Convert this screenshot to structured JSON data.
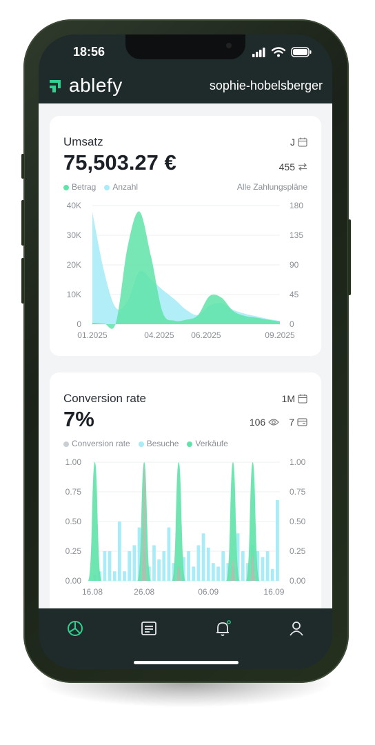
{
  "status_bar": {
    "time": "18:56"
  },
  "header": {
    "logo_text": "ablefy",
    "username": "sophie-hobelsberger"
  },
  "revenue_card": {
    "title": "Umsatz",
    "amount": "75,503.27 €",
    "period": "J",
    "count": "455",
    "legend": [
      "Betrag",
      "Anzahl"
    ],
    "filter": "Alle Zahlungspläne",
    "colors": {
      "betrag": "#5fe3a8",
      "anzahl": "#a8ecf7"
    }
  },
  "conversion_card": {
    "title": "Conversion rate",
    "value": "7%",
    "period": "1M",
    "visits": "106",
    "sales": "7",
    "legend": [
      "Conversion rate",
      "Besuche",
      "Verkäufe"
    ],
    "colors": {
      "conversion": "#c9ced3",
      "besuche": "#a8ecf7",
      "verkaeufe": "#5fe3a8"
    }
  },
  "chart_data": [
    {
      "type": "area",
      "title": "Umsatz",
      "x_ticks": [
        "01.2025",
        "04.2025",
        "06.2025",
        "09.2025"
      ],
      "y_left_ticks": [
        "0",
        "10K",
        "20K",
        "30K",
        "40K"
      ],
      "y_right_ticks": [
        "0",
        "45",
        "90",
        "135",
        "180"
      ],
      "ylim_left": [
        0,
        40000
      ],
      "ylim_right": [
        0,
        180
      ],
      "x": [
        0,
        0.5,
        1,
        1.5,
        2,
        2.5,
        3,
        3.5,
        4,
        4.5,
        5,
        5.5,
        6,
        6.5,
        7,
        7.5,
        8
      ],
      "series": [
        {
          "name": "Betrag",
          "axis": "left",
          "values": [
            500,
            200,
            400,
            26000,
            38000,
            23000,
            4000,
            1200,
            1500,
            3000,
            9500,
            9000,
            4500,
            2800,
            2200,
            1500,
            900
          ]
        },
        {
          "name": "Anzahl",
          "axis": "right",
          "values": [
            170,
            80,
            25,
            35,
            80,
            68,
            52,
            38,
            22,
            14,
            28,
            32,
            22,
            16,
            12,
            8,
            5
          ]
        }
      ]
    },
    {
      "type": "bar",
      "title": "Conversion rate",
      "x_ticks": [
        "16.08",
        "26.08",
        "06.09",
        "16.09"
      ],
      "y_left_ticks": [
        "0.00",
        "0.25",
        "0.50",
        "0.75",
        "1.00"
      ],
      "y_right_ticks": [
        "0.00",
        "0.25",
        "0.50",
        "0.75",
        "1.00"
      ],
      "ylim": [
        0,
        1
      ],
      "series": [
        {
          "name": "Besuche",
          "values": [
            0.05,
            0.08,
            0.25,
            0.25,
            0.08,
            0.5,
            0.08,
            0.25,
            0.3,
            0.45,
            0.25,
            0.12,
            0.3,
            0.18,
            0.25,
            0.45,
            0.15,
            0.12,
            0.2,
            0.25,
            0.12,
            0.3,
            0.4,
            0.28,
            0.15,
            0.12,
            0.25,
            0.15,
            0.12,
            0.4,
            0.25,
            0.15,
            0.3,
            0.25,
            0.2,
            0.25,
            0.1,
            0.68
          ]
        },
        {
          "name": "Verkäufe",
          "peaks": [
            {
              "index": 0,
              "value": 1.0
            },
            {
              "index": 10,
              "value": 1.0
            },
            {
              "index": 17,
              "value": 1.0
            },
            {
              "index": 28,
              "value": 1.0
            },
            {
              "index": 32,
              "value": 1.0
            }
          ]
        },
        {
          "name": "Conversion rate",
          "peaks": [
            {
              "index": 10,
              "value": 0.98
            },
            {
              "index": 17,
              "value": 0.12
            },
            {
              "index": 28,
              "value": 0.18
            },
            {
              "index": 32,
              "value": 0.22
            }
          ]
        }
      ]
    }
  ]
}
